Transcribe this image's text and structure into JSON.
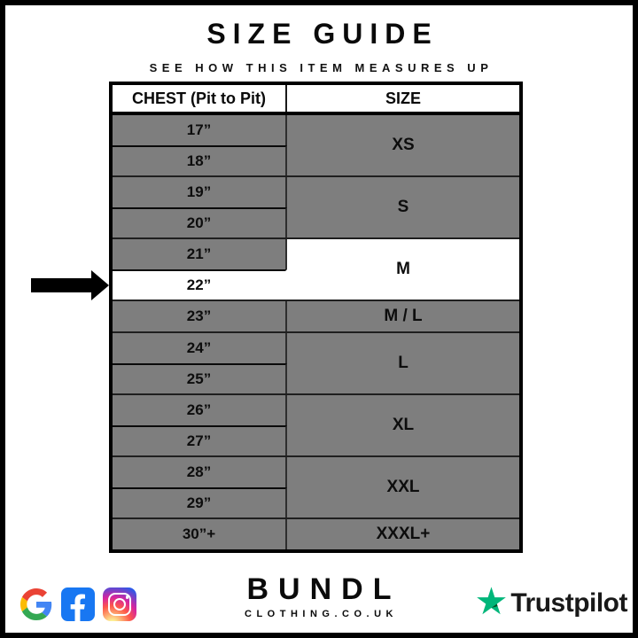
{
  "header": {
    "title": "SIZE GUIDE",
    "subtitle": "SEE HOW THIS ITEM MEASURES UP"
  },
  "table": {
    "headers": [
      "CHEST (Pit to Pit)",
      "SIZE"
    ],
    "groups": [
      {
        "size": "XS",
        "rows": [
          {
            "chest": "17”"
          },
          {
            "chest": "18”"
          }
        ]
      },
      {
        "size": "S",
        "rows": [
          {
            "chest": "19”"
          },
          {
            "chest": "20”"
          }
        ]
      },
      {
        "size": "M",
        "size_highlight": true,
        "rows": [
          {
            "chest": "21”"
          },
          {
            "chest": "22”",
            "highlight": true,
            "arrow": true
          }
        ]
      },
      {
        "size": "M / L",
        "rows": [
          {
            "chest": "23”"
          }
        ]
      },
      {
        "size": "L",
        "rows": [
          {
            "chest": "24”"
          },
          {
            "chest": "25”"
          }
        ]
      },
      {
        "size": "XL",
        "rows": [
          {
            "chest": "26”"
          },
          {
            "chest": "27”"
          }
        ]
      },
      {
        "size": "XXL",
        "rows": [
          {
            "chest": "28”"
          },
          {
            "chest": "29”"
          }
        ]
      },
      {
        "size": "XXXL+",
        "rows": [
          {
            "chest": "30”+"
          }
        ]
      }
    ],
    "highlighted_measurement": "22”",
    "highlighted_size": "M"
  },
  "footer": {
    "brand_name": "BUNDL",
    "brand_domain": "CLOTHING.CO.UK",
    "trustpilot_label": "Trustpilot",
    "social_icons": [
      "google-icon",
      "facebook-icon",
      "instagram-icon"
    ]
  },
  "colors": {
    "row_gray": "#7e7e7e",
    "highlight_white": "#ffffff",
    "border_black": "#000000",
    "facebook_blue": "#1877F2",
    "trustpilot_green": "#00B67A",
    "trustpilot_dark_green": "#005128"
  }
}
